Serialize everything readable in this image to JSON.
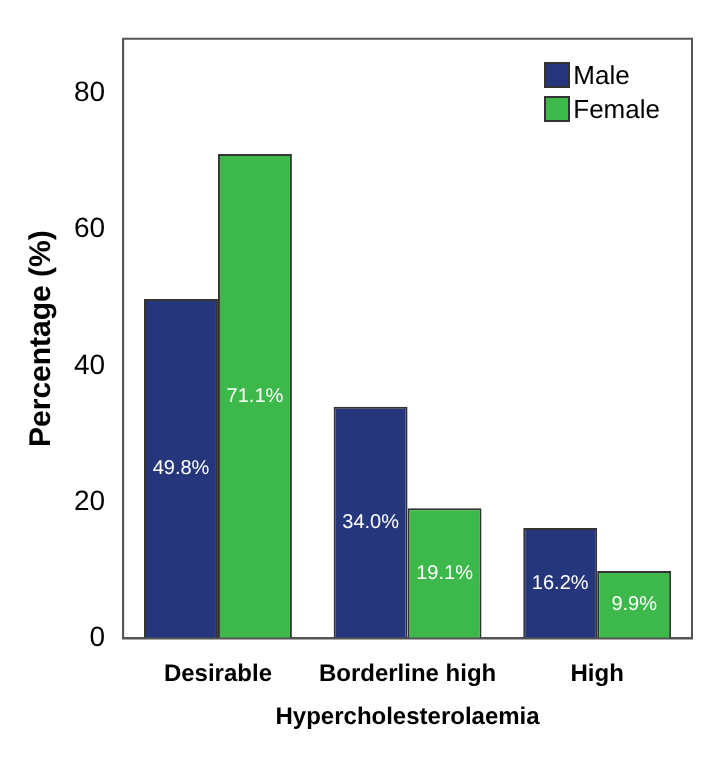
{
  "chart_data": {
    "type": "bar",
    "xlabel": "Hypercholesterolaemia",
    "ylabel": "Percentage (%)",
    "categories": [
      "Desirable",
      "Borderline high",
      "High"
    ],
    "series": [
      {
        "name": "Male",
        "color": "#26367c",
        "values": [
          49.8,
          34.0,
          16.2
        ],
        "value_labels": [
          "49.8%",
          "34.0%",
          "16.2%"
        ]
      },
      {
        "name": "Female",
        "color": "#3cb94a",
        "values": [
          71.1,
          19.1,
          9.9
        ],
        "value_labels": [
          "71.1%",
          "19.1%",
          "9.9%"
        ]
      }
    ],
    "ylim": [
      0,
      88
    ],
    "yticks": [
      0,
      20,
      40,
      60,
      80
    ],
    "grid": false,
    "legend": "top right"
  }
}
